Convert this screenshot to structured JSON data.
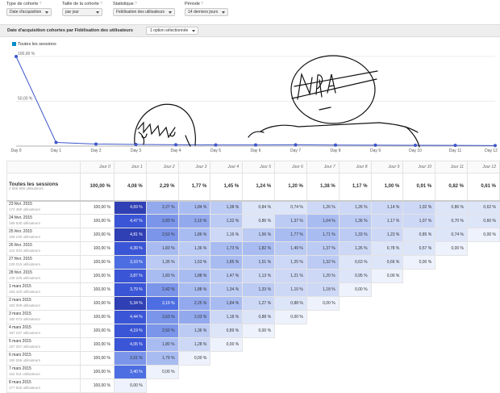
{
  "controls": [
    {
      "label": "Type de cohorte",
      "value": "Date d'acquisition"
    },
    {
      "label": "Taille de la cohorte",
      "value": "par jour"
    },
    {
      "label": "Statistique",
      "value": "Fidélisation des utilisateurs"
    },
    {
      "label": "Période",
      "value": "14 derniers jours"
    }
  ],
  "report_bar": {
    "title": "Date d'acquisition cohortes par Fidélisation des utilisateurs",
    "segment_button": "1 option sélectionnée"
  },
  "legend": {
    "label": "Toutes les sessions",
    "color": "#058dc7"
  },
  "chart_data": {
    "type": "line",
    "x": [
      "Day 0",
      "Day 1",
      "Day 2",
      "Day 3",
      "Day 4",
      "Day 5",
      "Day 6",
      "Day 7",
      "Day 8",
      "Day 9",
      "Day 10",
      "Day 11",
      "Day 12"
    ],
    "series": [
      {
        "name": "Toutes les sessions",
        "values": [
          100.0,
          4.08,
          2.29,
          1.77,
          1.45,
          1.24,
          1.2,
          1.38,
          1.17,
          1.0,
          0.91,
          0.82,
          0.61
        ]
      }
    ],
    "ytick_labels": [
      "100,00 %",
      "50,00 %"
    ],
    "ylim": [
      0,
      100
    ],
    "color": "#3d56c9",
    "grid": true
  },
  "table": {
    "columns": [
      "Jour 0",
      "Jour 1",
      "Jour 2",
      "Jour 3",
      "Jour 4",
      "Jour 5",
      "Jour 6",
      "Jour 7",
      "Jour 8",
      "Jour 9",
      "Jour 10",
      "Jour 11",
      "Jour 12"
    ],
    "total": {
      "label": "Toutes les sessions",
      "users": "2 868 665 utilisateurs",
      "values": [
        "100,00 %",
        "4,08 %",
        "2,29 %",
        "1,77 %",
        "1,45 %",
        "1,24 %",
        "1,20 %",
        "1,38 %",
        "1,17 %",
        "1,00 %",
        "0,91 %",
        "0,82 %",
        "0,61 %"
      ]
    },
    "rows": [
      {
        "date": "23 févr. 2015",
        "users": "172 480 utilisateurs",
        "values": [
          "100,00 %",
          "4,69 %",
          "2,27 %",
          "1,84 %",
          "1,38 %",
          "0,84 %",
          "0,74 %",
          "1,26 %",
          "1,26 %",
          "1,14 %",
          "1,02 %",
          "0,86 %",
          "0,62 %"
        ]
      },
      {
        "date": "24 févr. 2015",
        "users": "186 530 utilisateurs",
        "values": [
          "100,00 %",
          "4,47 %",
          "2,83 %",
          "2,10 %",
          "1,32 %",
          "0,86 %",
          "1,37 %",
          "1,64 %",
          "1,36 %",
          "1,17 %",
          "1,07 %",
          "0,70 %",
          "0,60 %"
        ]
      },
      {
        "date": "25 févr. 2015",
        "users": "158 230 utilisateurs",
        "values": [
          "100,00 %",
          "4,81 %",
          "2,53 %",
          "1,86 %",
          "1,16 %",
          "1,56 %",
          "1,77 %",
          "1,71 %",
          "1,33 %",
          "1,23 %",
          "0,85 %",
          "0,74 %",
          "0,00 %"
        ]
      },
      {
        "date": "26 févr. 2015",
        "users": "124 034 utilisateurs",
        "values": [
          "100,00 %",
          "4,39 %",
          "1,83 %",
          "1,36 %",
          "1,73 %",
          "1,82 %",
          "1,49 %",
          "1,37 %",
          "1,26 %",
          "0,78 %",
          "0,57 %",
          "0,00 %",
          ""
        ]
      },
      {
        "date": "27 févr. 2015",
        "users": "129 015 utilisateurs",
        "values": [
          "100,00 %",
          "3,10 %",
          "1,35 %",
          "1,53 %",
          "1,85 %",
          "1,51 %",
          "1,25 %",
          "1,32 %",
          "0,63 %",
          "0,66 %",
          "0,00 %",
          "",
          ""
        ]
      },
      {
        "date": "28 févr. 2015",
        "users": "139 225 utilisateurs",
        "values": [
          "100,00 %",
          "3,87 %",
          "1,83 %",
          "1,88 %",
          "1,47 %",
          "1,13 %",
          "1,21 %",
          "1,20 %",
          "0,95 %",
          "0,00 %",
          "",
          "",
          ""
        ]
      },
      {
        "date": "1 mars 2015",
        "users": "163 420 utilisateurs",
        "values": [
          "100,00 %",
          "3,79 %",
          "2,42 %",
          "1,88 %",
          "1,34 %",
          "1,33 %",
          "1,10 %",
          "1,18 %",
          "0,00 %",
          "",
          "",
          "",
          ""
        ]
      },
      {
        "date": "2 mars 2015",
        "users": "183 069 utilisateurs",
        "values": [
          "100,00 %",
          "5,34 %",
          "3,19 %",
          "2,25 %",
          "1,84 %",
          "1,27 %",
          "0,88 %",
          "0,00 %",
          "",
          "",
          "",
          "",
          ""
        ]
      },
      {
        "date": "3 mars 2015",
        "users": "180 073 utilisateurs",
        "values": [
          "100,00 %",
          "4,44 %",
          "2,63 %",
          "2,03 %",
          "1,18 %",
          "0,88 %",
          "0,00 %",
          "",
          "",
          "",
          "",
          "",
          ""
        ]
      },
      {
        "date": "4 mars 2015",
        "users": "187 237 utilisateurs",
        "values": [
          "100,00 %",
          "4,19 %",
          "2,50 %",
          "1,36 %",
          "0,89 %",
          "0,00 %",
          "",
          "",
          "",
          "",
          "",
          "",
          ""
        ]
      },
      {
        "date": "5 mars 2015",
        "users": "157 257 utilisateurs",
        "values": [
          "100,00 %",
          "4,05 %",
          "1,80 %",
          "1,28 %",
          "0,00 %",
          "",
          "",
          "",
          "",
          "",
          "",
          "",
          ""
        ]
      },
      {
        "date": "6 mars 2015",
        "users": "150 066 utilisateurs",
        "values": [
          "100,00 %",
          "2,61 %",
          "1,79 %",
          "0,00 %",
          "",
          "",
          "",
          "",
          "",
          "",
          "",
          "",
          ""
        ]
      },
      {
        "date": "7 mars 2015",
        "users": "154 011 utilisateurs",
        "values": [
          "100,00 %",
          "3,40 %",
          "0,00 %",
          "",
          "",
          "",
          "",
          "",
          "",
          "",
          "",
          "",
          ""
        ]
      },
      {
        "date": "8 mars 2015",
        "users": "177 832 utilisateurs",
        "values": [
          "100,00 %",
          "0,00 %",
          "",
          "",
          "",
          "",
          "",
          "",
          "",
          "",
          "",
          "",
          ""
        ]
      }
    ]
  }
}
